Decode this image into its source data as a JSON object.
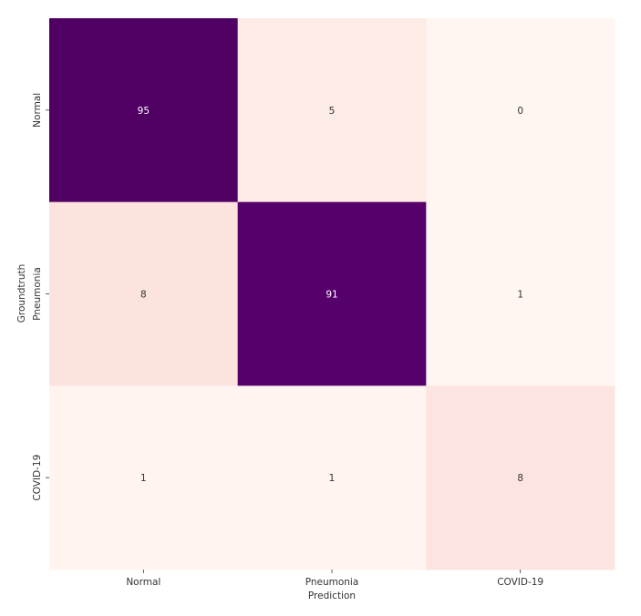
{
  "chart_data": {
    "type": "heatmap",
    "title": "",
    "xlabel": "Prediction",
    "ylabel": "Groundtruth",
    "x_categories": [
      "Normal",
      "Pneumonia",
      "COVID-19"
    ],
    "y_categories": [
      "Normal",
      "Pneumonia",
      "COVID-19"
    ],
    "values": [
      [
        95,
        5,
        0
      ],
      [
        8,
        91,
        1
      ],
      [
        1,
        1,
        8
      ]
    ],
    "colormap": "RdPu",
    "colors": [
      [
        "#4f0062",
        "#fdebe6",
        "#fff5f1"
      ],
      [
        "#fce3de",
        "#56006b",
        "#fff5f1"
      ],
      [
        "#fff4f0",
        "#fff4f0",
        "#fce5e1"
      ]
    ],
    "text_colors": [
      [
        "#ffffff",
        "#333333",
        "#333333"
      ],
      [
        "#333333",
        "#ffffff",
        "#333333"
      ],
      [
        "#333333",
        "#333333",
        "#333333"
      ]
    ]
  }
}
